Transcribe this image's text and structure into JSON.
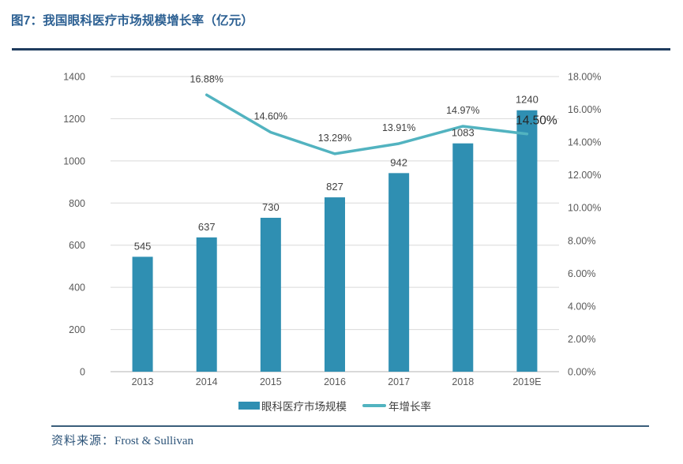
{
  "figure": {
    "title": "图7：我国眼科医疗市场规模增长率（亿元）",
    "source_label": "资料来源：",
    "source_value": "Frost & Sullivan"
  },
  "colors": {
    "bar": "#2F8FB2",
    "line": "#52B3C0",
    "title_text": "#2B5F92",
    "top_rule": "#1F3C5E",
    "bottom_rule": "#3A5D7A",
    "axis_text": "#595959",
    "data_label_text": "#404040",
    "gridline": "#D9D9D9",
    "baseline": "#B3B3B3"
  },
  "chart_data": {
    "type": "bar",
    "subtype": "bar+line combo, dual axis",
    "title": "图7：我国眼科医疗市场规模增长率（亿元）",
    "categories": [
      "2013",
      "2014",
      "2015",
      "2016",
      "2017",
      "2018",
      "2019E"
    ],
    "series": [
      {
        "name": "眼科医疗市场规模",
        "type": "bar",
        "axis": "left",
        "values": [
          545,
          637,
          730,
          827,
          942,
          1083,
          1240
        ],
        "value_labels": [
          "545",
          "637",
          "730",
          "827",
          "942",
          "1083",
          "1240"
        ]
      },
      {
        "name": "年增长率",
        "type": "line",
        "axis": "right",
        "values": [
          null,
          16.88,
          14.6,
          13.29,
          13.91,
          14.97,
          14.5
        ],
        "value_labels": [
          null,
          "16.88%",
          "14.60%",
          "13.29%",
          "13.91%",
          "14.97%",
          "14.50%"
        ]
      }
    ],
    "left_axis": {
      "min": 0,
      "max": 1400,
      "step": 200,
      "ticks": [
        "0",
        "200",
        "400",
        "600",
        "800",
        "1000",
        "1200",
        "1400"
      ]
    },
    "right_axis": {
      "min": 0,
      "max": 18,
      "step": 2,
      "ticks": [
        "0.00%",
        "2.00%",
        "4.00%",
        "6.00%",
        "8.00%",
        "10.00%",
        "12.00%",
        "14.00%",
        "16.00%",
        "18.00%"
      ]
    },
    "grid": true,
    "legend_position": "bottom",
    "legend": [
      "眼科医疗市场规模",
      "年增长率"
    ]
  }
}
